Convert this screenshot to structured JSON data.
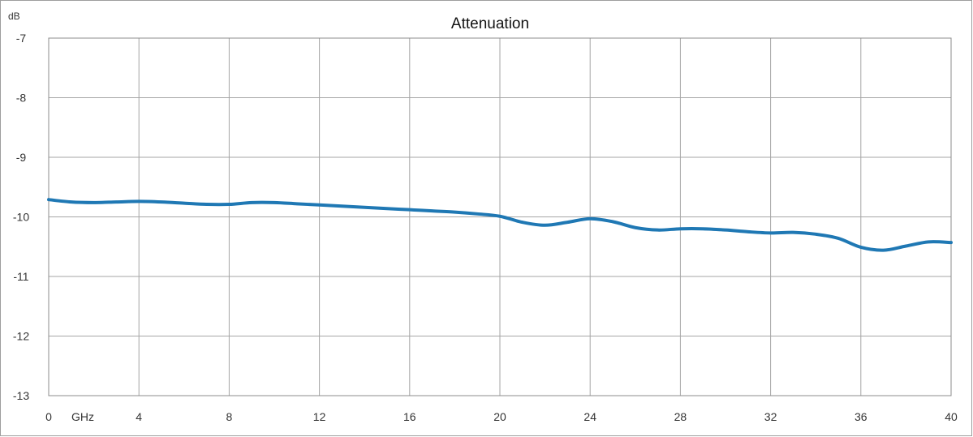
{
  "chart_data": {
    "type": "line",
    "title": "Attenuation",
    "y_unit_label": "dB",
    "x_unit_label": "GHz",
    "xlim": [
      0,
      40
    ],
    "ylim": [
      -13,
      -7
    ],
    "x_ticks": [
      0,
      4,
      8,
      12,
      16,
      20,
      24,
      28,
      32,
      36,
      40
    ],
    "y_ticks": [
      -7,
      -8,
      -9,
      -10,
      -11,
      -12,
      -13
    ],
    "grid": true,
    "legend": "none",
    "series": [
      {
        "color": "#1f78b4",
        "x": [
          0,
          1,
          2,
          3,
          4,
          5,
          6,
          7,
          8,
          9,
          10,
          11,
          12,
          13,
          14,
          15,
          16,
          17,
          18,
          19,
          20,
          21,
          22,
          23,
          24,
          25,
          26,
          27,
          28,
          29,
          30,
          31,
          32,
          33,
          34,
          35,
          36,
          37,
          38,
          39,
          40
        ],
        "y": [
          -9.71,
          -9.75,
          -9.76,
          -9.75,
          -9.74,
          -9.75,
          -9.77,
          -9.79,
          -9.79,
          -9.76,
          -9.76,
          -9.78,
          -9.8,
          -9.82,
          -9.84,
          -9.86,
          -9.88,
          -9.9,
          -9.92,
          -9.95,
          -9.99,
          -10.09,
          -10.14,
          -10.09,
          -10.03,
          -10.08,
          -10.18,
          -10.22,
          -10.2,
          -10.2,
          -10.22,
          -10.25,
          -10.27,
          -10.26,
          -10.29,
          -10.36,
          -10.51,
          -10.56,
          -10.49,
          -10.42,
          -10.43
        ]
      }
    ]
  }
}
